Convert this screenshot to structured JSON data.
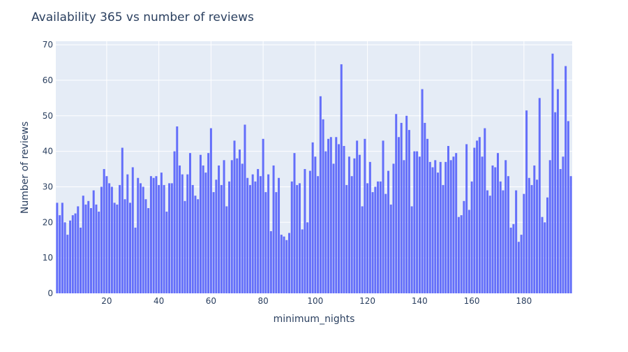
{
  "chart_data": {
    "type": "bar",
    "title": "Availability 365 vs number of reviews",
    "xlabel": "minimum_nights",
    "ylabel": "Number of reviews",
    "color": "#636efa",
    "grid": true,
    "x": [
      1,
      2,
      3,
      4,
      5,
      6,
      7,
      8,
      9,
      10,
      11,
      12,
      13,
      14,
      15,
      16,
      17,
      18,
      19,
      20,
      21,
      22,
      23,
      24,
      25,
      26,
      27,
      28,
      29,
      30,
      31,
      32,
      33,
      34,
      35,
      36,
      37,
      38,
      39,
      40,
      41,
      42,
      43,
      44,
      45,
      46,
      47,
      48,
      49,
      50,
      51,
      52,
      53,
      54,
      55,
      56,
      57,
      58,
      59,
      60,
      61,
      62,
      63,
      64,
      65,
      66,
      67,
      68,
      69,
      70,
      71,
      72,
      73,
      74,
      75,
      76,
      77,
      78,
      79,
      80,
      81,
      82,
      83,
      84,
      85,
      86,
      87,
      88,
      89,
      90,
      91,
      92,
      93,
      94,
      95,
      96,
      97,
      98,
      99,
      100,
      101,
      102,
      103,
      104,
      105,
      106,
      107,
      108,
      109,
      110,
      111,
      112,
      113,
      114,
      115,
      116,
      117,
      118,
      119,
      120,
      121,
      122,
      123,
      124,
      125,
      126,
      127,
      128,
      129,
      130,
      131,
      132,
      133,
      134,
      135,
      136,
      137,
      138,
      139,
      140,
      141,
      142,
      143,
      144,
      145,
      146,
      147,
      148,
      149,
      150,
      151,
      152,
      153,
      154,
      155,
      156,
      157,
      158,
      159,
      160,
      161,
      162,
      163,
      164,
      165,
      166,
      167,
      168,
      169,
      170,
      171,
      172,
      173,
      174,
      175,
      176,
      177,
      178,
      179,
      180,
      181,
      182,
      183,
      184,
      185,
      186,
      187,
      188,
      189,
      190,
      191,
      192,
      193,
      194,
      195,
      196,
      197,
      198
    ],
    "values": [
      25.5,
      22,
      25.5,
      20,
      16.5,
      20.5,
      22,
      22.5,
      24.5,
      18.5,
      27.5,
      25,
      26,
      24,
      29,
      25,
      23,
      30,
      35,
      33,
      31,
      30,
      25.5,
      25,
      30.5,
      41,
      26.5,
      33.5,
      25.5,
      35.5,
      18.5,
      32.5,
      31,
      30,
      26.5,
      24,
      33,
      32.5,
      33,
      30.5,
      34,
      30.5,
      23,
      31,
      31,
      40,
      47,
      36,
      33.5,
      26,
      33.5,
      39.5,
      30.5,
      27.5,
      26.5,
      39,
      36,
      34,
      39.5,
      46.5,
      28.5,
      32,
      36,
      30.5,
      37.5,
      24.5,
      31.5,
      37.5,
      43,
      38,
      40.5,
      36.5,
      47.5,
      32.5,
      30.5,
      33.5,
      31.5,
      35,
      33,
      43.5,
      28.5,
      33.5,
      17.5,
      36,
      28.5,
      32.5,
      16.5,
      16,
      15,
      17,
      31.5,
      39.5,
      30.5,
      31,
      18,
      35,
      20,
      34.5,
      42.5,
      38.5,
      33,
      55.5,
      49,
      40,
      43.5,
      44,
      36.5,
      44,
      42,
      64.5,
      41.5,
      30.5,
      38.5,
      33,
      38,
      43,
      39,
      24.5,
      43.5,
      31,
      37,
      28.5,
      30,
      31.5,
      31.5,
      43,
      28,
      34.5,
      25,
      36.5,
      50.5,
      44,
      48,
      37.5,
      50,
      46,
      24.5,
      40,
      40,
      38.5,
      57.5,
      48,
      43.5,
      37,
      35.5,
      37.5,
      34,
      37,
      30.5,
      37,
      41.5,
      37.5,
      38.5,
      39.5,
      21.5,
      22,
      26,
      42,
      23.5,
      31.5,
      41,
      43,
      44,
      38.5,
      46.5,
      29,
      27.5,
      36,
      35.5,
      39.5,
      31.5,
      29,
      37.5,
      33,
      18.5,
      19.5,
      29,
      14.5,
      16.5,
      28,
      51.5,
      32.5,
      30.5,
      36,
      32,
      55,
      21.5,
      20,
      27,
      37.5,
      67.5,
      51,
      57.5,
      35,
      38.5,
      64,
      48.5,
      33
    ],
    "xlim": [
      0.5,
      198.5
    ],
    "xticks": [
      20,
      40,
      60,
      80,
      100,
      120,
      140,
      160,
      180
    ],
    "ylim": [
      0,
      71
    ],
    "yticks": [
      0,
      10,
      20,
      30,
      40,
      50,
      60,
      70
    ]
  }
}
